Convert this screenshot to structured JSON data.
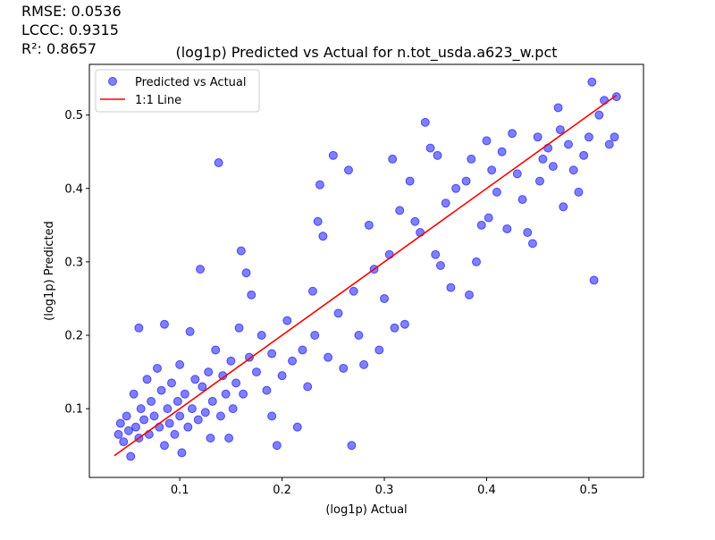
{
  "chart_data": {
    "type": "scatter",
    "title": "(log1p) Predicted vs Actual for n.tot_usda.a623_w.pct",
    "annotations": [
      "RMSE: 0.0536",
      "LCCC: 0.9315",
      "R²: 0.8657"
    ],
    "xlabel": "(log1p) Actual",
    "ylabel": "(log1p) Predicted",
    "xlim": [
      0.0116,
      0.5534
    ],
    "ylim": [
      0.0064,
      0.569
    ],
    "xticks": [
      0.1,
      0.2,
      0.3,
      0.4,
      0.5
    ],
    "yticks": [
      0.1,
      0.2,
      0.3,
      0.4,
      0.5
    ],
    "grid": false,
    "legend": "upper left",
    "series": [
      {
        "name": "Predicted vs Actual",
        "color": "#0000ff",
        "kind": "scatter",
        "x": [
          0.04,
          0.042,
          0.045,
          0.048,
          0.05,
          0.052,
          0.055,
          0.057,
          0.06,
          0.06,
          0.062,
          0.065,
          0.068,
          0.07,
          0.072,
          0.075,
          0.078,
          0.08,
          0.082,
          0.085,
          0.085,
          0.088,
          0.09,
          0.092,
          0.095,
          0.098,
          0.1,
          0.1,
          0.102,
          0.105,
          0.108,
          0.11,
          0.112,
          0.115,
          0.118,
          0.12,
          0.122,
          0.125,
          0.128,
          0.13,
          0.132,
          0.135,
          0.138,
          0.14,
          0.142,
          0.145,
          0.148,
          0.15,
          0.152,
          0.155,
          0.158,
          0.16,
          0.162,
          0.165,
          0.168,
          0.17,
          0.175,
          0.18,
          0.185,
          0.19,
          0.19,
          0.195,
          0.2,
          0.205,
          0.21,
          0.215,
          0.22,
          0.225,
          0.23,
          0.232,
          0.235,
          0.237,
          0.24,
          0.245,
          0.25,
          0.255,
          0.26,
          0.265,
          0.268,
          0.27,
          0.275,
          0.28,
          0.285,
          0.29,
          0.295,
          0.3,
          0.305,
          0.308,
          0.31,
          0.315,
          0.32,
          0.325,
          0.33,
          0.335,
          0.34,
          0.345,
          0.35,
          0.352,
          0.355,
          0.36,
          0.365,
          0.37,
          0.38,
          0.383,
          0.385,
          0.39,
          0.395,
          0.4,
          0.402,
          0.405,
          0.41,
          0.415,
          0.42,
          0.425,
          0.43,
          0.435,
          0.44,
          0.445,
          0.45,
          0.452,
          0.455,
          0.46,
          0.465,
          0.47,
          0.472,
          0.475,
          0.48,
          0.485,
          0.49,
          0.495,
          0.5,
          0.503,
          0.505,
          0.51,
          0.515,
          0.52,
          0.525,
          0.527
        ],
        "values": [
          0.065,
          0.08,
          0.055,
          0.09,
          0.07,
          0.035,
          0.12,
          0.075,
          0.06,
          0.21,
          0.1,
          0.085,
          0.14,
          0.065,
          0.11,
          0.09,
          0.155,
          0.075,
          0.125,
          0.05,
          0.215,
          0.1,
          0.08,
          0.135,
          0.065,
          0.11,
          0.09,
          0.16,
          0.04,
          0.12,
          0.075,
          0.205,
          0.1,
          0.14,
          0.085,
          0.29,
          0.13,
          0.095,
          0.15,
          0.06,
          0.11,
          0.18,
          0.435,
          0.09,
          0.145,
          0.12,
          0.06,
          0.165,
          0.1,
          0.135,
          0.21,
          0.315,
          0.12,
          0.285,
          0.17,
          0.255,
          0.15,
          0.2,
          0.125,
          0.09,
          0.175,
          0.05,
          0.145,
          0.22,
          0.165,
          0.075,
          0.18,
          0.13,
          0.26,
          0.2,
          0.355,
          0.405,
          0.335,
          0.17,
          0.445,
          0.23,
          0.155,
          0.425,
          0.05,
          0.26,
          0.2,
          0.16,
          0.35,
          0.29,
          0.18,
          0.25,
          0.31,
          0.44,
          0.21,
          0.37,
          0.215,
          0.41,
          0.355,
          0.34,
          0.49,
          0.455,
          0.31,
          0.445,
          0.295,
          0.38,
          0.265,
          0.4,
          0.41,
          0.255,
          0.44,
          0.3,
          0.35,
          0.465,
          0.36,
          0.425,
          0.395,
          0.45,
          0.345,
          0.475,
          0.42,
          0.385,
          0.34,
          0.325,
          0.47,
          0.41,
          0.44,
          0.455,
          0.43,
          0.51,
          0.48,
          0.375,
          0.46,
          0.425,
          0.395,
          0.445,
          0.47,
          0.545,
          0.275,
          0.5,
          0.52,
          0.46,
          0.47,
          0.525
        ]
      },
      {
        "name": "1:1 Line",
        "color": "#ff0000",
        "kind": "line",
        "x": [
          0.036,
          0.527
        ],
        "values": [
          0.036,
          0.527
        ]
      }
    ]
  }
}
